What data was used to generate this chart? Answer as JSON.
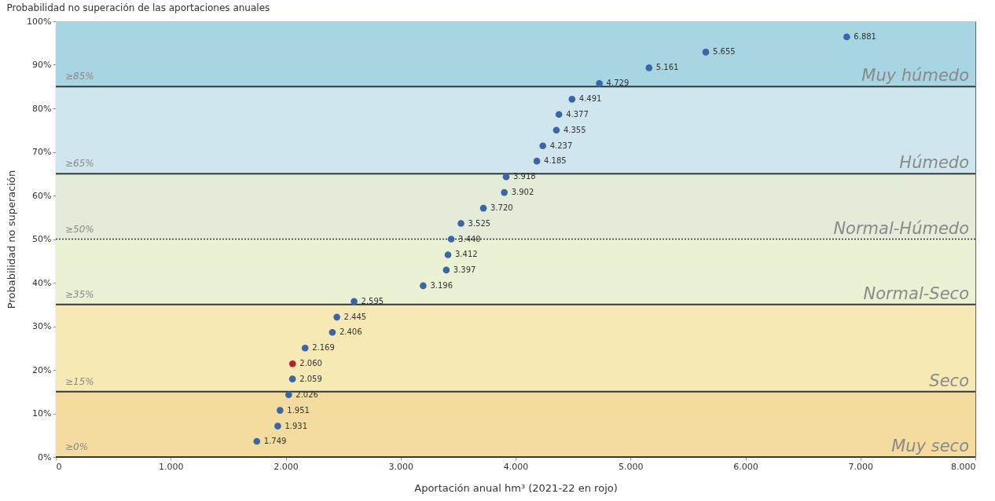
{
  "chart_data": {
    "type": "scatter",
    "title": "Probabilidad no superación de las aportaciones anuales",
    "xlabel": "Aportación anual hm³ (2021-22 en rojo)",
    "ylabel": "Probabilidad no superación",
    "x": [
      1749,
      1931,
      1951,
      2026,
      2059,
      2060,
      2169,
      2406,
      2445,
      2595,
      3196,
      3397,
      3412,
      3440,
      3525,
      3720,
      3902,
      3918,
      4185,
      4237,
      4355,
      4377,
      4491,
      4729,
      5161,
      5655,
      6881
    ],
    "values": [
      3.6,
      7.1,
      10.7,
      14.3,
      17.9,
      21.4,
      25.0,
      28.6,
      32.1,
      35.7,
      39.3,
      42.9,
      46.4,
      50.0,
      53.6,
      57.1,
      60.7,
      64.3,
      67.9,
      71.4,
      75.0,
      78.6,
      82.1,
      85.7,
      89.3,
      92.9,
      96.4
    ],
    "colors": [
      "#3b65a6",
      "#3b65a6",
      "#3b65a6",
      "#3b65a6",
      "#3b65a6",
      "#b3232b",
      "#3b65a6",
      "#3b65a6",
      "#3b65a6",
      "#3b65a6",
      "#3b65a6",
      "#3b65a6",
      "#3b65a6",
      "#3b65a6",
      "#3b65a6",
      "#3b65a6",
      "#3b65a6",
      "#3b65a6",
      "#3b65a6",
      "#3b65a6",
      "#3b65a6",
      "#3b65a6",
      "#3b65a6",
      "#3b65a6",
      "#3b65a6",
      "#3b65a6",
      "#3b65a6"
    ],
    "marker": "circle",
    "annotations": [
      {
        "text": "1.749",
        "x": 1749,
        "y": 3.6
      },
      {
        "text": "1.931",
        "x": 1931,
        "y": 7.1
      },
      {
        "text": "1.951",
        "x": 1951,
        "y": 10.7
      },
      {
        "text": "2.026",
        "x": 2026,
        "y": 14.3
      },
      {
        "text": "2.059",
        "x": 2059,
        "y": 17.9
      },
      {
        "text": "2.060",
        "x": 2060,
        "y": 21.4
      },
      {
        "text": "2.169",
        "x": 2169,
        "y": 25.0
      },
      {
        "text": "2.406",
        "x": 2406,
        "y": 28.6
      },
      {
        "text": "2.445",
        "x": 2445,
        "y": 32.1
      },
      {
        "text": "2.595",
        "x": 2595,
        "y": 35.7
      },
      {
        "text": "3.196",
        "x": 3196,
        "y": 39.3
      },
      {
        "text": "3.397",
        "x": 3397,
        "y": 42.9
      },
      {
        "text": "3.412",
        "x": 3412,
        "y": 46.4
      },
      {
        "text": "3.440",
        "x": 3440,
        "y": 50.0
      },
      {
        "text": "3.525",
        "x": 3525,
        "y": 53.6
      },
      {
        "text": "3.720",
        "x": 3720,
        "y": 57.1
      },
      {
        "text": "3.902",
        "x": 3902,
        "y": 60.7
      },
      {
        "text": "3.918",
        "x": 3918,
        "y": 64.3
      },
      {
        "text": "4.185",
        "x": 4185,
        "y": 67.9
      },
      {
        "text": "4.237",
        "x": 4237,
        "y": 71.4
      },
      {
        "text": "4.355",
        "x": 4355,
        "y": 75.0
      },
      {
        "text": "4.377",
        "x": 4377,
        "y": 78.6
      },
      {
        "text": "4.491",
        "x": 4491,
        "y": 82.1
      },
      {
        "text": "4.729",
        "x": 4729,
        "y": 85.7
      },
      {
        "text": "5.161",
        "x": 5161,
        "y": 89.3
      },
      {
        "text": "5.655",
        "x": 5655,
        "y": 92.9
      },
      {
        "text": "6.881",
        "x": 6881,
        "y": 96.4
      }
    ],
    "bands": [
      {
        "axis": "y",
        "from": 0,
        "to": 15,
        "label": "Muy seco",
        "color": "#f3dc9d"
      },
      {
        "axis": "y",
        "from": 15,
        "to": 35,
        "label": "Seco",
        "color": "#f6e9b4"
      },
      {
        "axis": "y",
        "from": 35,
        "to": 50,
        "label": "Normal-Seco",
        "color": "#ebf1d3"
      },
      {
        "axis": "y",
        "from": 50,
        "to": 65,
        "label": "Normal-Húmedo",
        "color": "#e4ebd9"
      },
      {
        "axis": "y",
        "from": 65,
        "to": 85,
        "label": "Húmedo",
        "color": "#cfe6ee"
      },
      {
        "axis": "y",
        "from": 85,
        "to": 100,
        "label": "Muy húmedo",
        "color": "#a8d5e2"
      }
    ],
    "ref_lines": [
      {
        "axis": "y",
        "value": 0,
        "label": "≥0%",
        "color": "#2f3b3b",
        "line_style": "solid"
      },
      {
        "axis": "y",
        "value": 15,
        "label": "≥15%",
        "color": "#2f3b3b",
        "line_style": "solid"
      },
      {
        "axis": "y",
        "value": 35,
        "label": "≥35%",
        "color": "#2f3b3b",
        "line_style": "solid"
      },
      {
        "axis": "y",
        "value": 50,
        "label": "≥50%",
        "color": "#2f3b3b",
        "line_style": "dotted"
      },
      {
        "axis": "y",
        "value": 65,
        "label": "≥65%",
        "color": "#2f3b3b",
        "line_style": "solid"
      },
      {
        "axis": "y",
        "value": 85,
        "label": "≥85%",
        "color": "#2f3b3b",
        "line_style": "solid"
      }
    ],
    "xlim": [
      0,
      8000
    ],
    "xticks": [
      0,
      {
        "value": 1000,
        "label": "1.000"
      },
      {
        "value": 2000,
        "label": "2.000"
      },
      {
        "value": 3000,
        "label": "3.000"
      },
      {
        "value": 4000,
        "label": "4.000"
      },
      {
        "value": 5000,
        "label": "5.000"
      },
      {
        "value": 6000,
        "label": "6.000"
      },
      {
        "value": 7000,
        "label": "7.000"
      },
      {
        "value": 8000,
        "label": "8.000"
      }
    ],
    "ylim": [
      0,
      100
    ],
    "yticks": [
      {
        "value": 0,
        "label": "0%"
      },
      {
        "value": 10,
        "label": "10%"
      },
      {
        "value": 20,
        "label": "20%"
      },
      {
        "value": 30,
        "label": "30%"
      },
      {
        "value": 40,
        "label": "40%"
      },
      {
        "value": 50,
        "label": "50%"
      },
      {
        "value": 60,
        "label": "60%"
      },
      {
        "value": 70,
        "label": "70%"
      },
      {
        "value": 80,
        "label": "80%"
      },
      {
        "value": 90,
        "label": "90%"
      },
      {
        "value": 100,
        "label": "100%"
      }
    ],
    "grid": "x",
    "legend": false
  }
}
